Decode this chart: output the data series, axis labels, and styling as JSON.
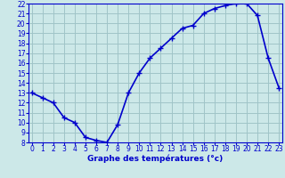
{
  "x": [
    0,
    1,
    2,
    3,
    4,
    5,
    6,
    7,
    8,
    9,
    10,
    11,
    12,
    13,
    14,
    15,
    16,
    17,
    18,
    19,
    20,
    21,
    22,
    23
  ],
  "y": [
    13.0,
    12.5,
    12.0,
    10.5,
    10.0,
    8.5,
    8.2,
    8.0,
    9.8,
    13.0,
    15.0,
    16.5,
    17.5,
    18.5,
    19.5,
    19.8,
    21.0,
    21.5,
    21.8,
    22.0,
    22.0,
    20.8,
    16.5,
    13.5
  ],
  "line_color": "#0000cc",
  "marker": "+",
  "marker_size": 4,
  "bg_color": "#cce8e8",
  "grid_color": "#a0c4c8",
  "xlabel": "Graphe des températures (°c)",
  "xlabel_color": "#0000cc",
  "xlabel_fontsize": 6.5,
  "tick_fontsize": 5.5,
  "ylim": [
    8,
    22
  ],
  "yticks": [
    8,
    9,
    10,
    11,
    12,
    13,
    14,
    15,
    16,
    17,
    18,
    19,
    20,
    21,
    22
  ],
  "xticks": [
    0,
    1,
    2,
    3,
    4,
    5,
    6,
    7,
    8,
    9,
    10,
    11,
    12,
    13,
    14,
    15,
    16,
    17,
    18,
    19,
    20,
    21,
    22,
    23
  ],
  "xlim": [
    -0.3,
    23.3
  ],
  "axis_color": "#0000cc",
  "line_width": 1.2,
  "spine_color": "#0000cc"
}
